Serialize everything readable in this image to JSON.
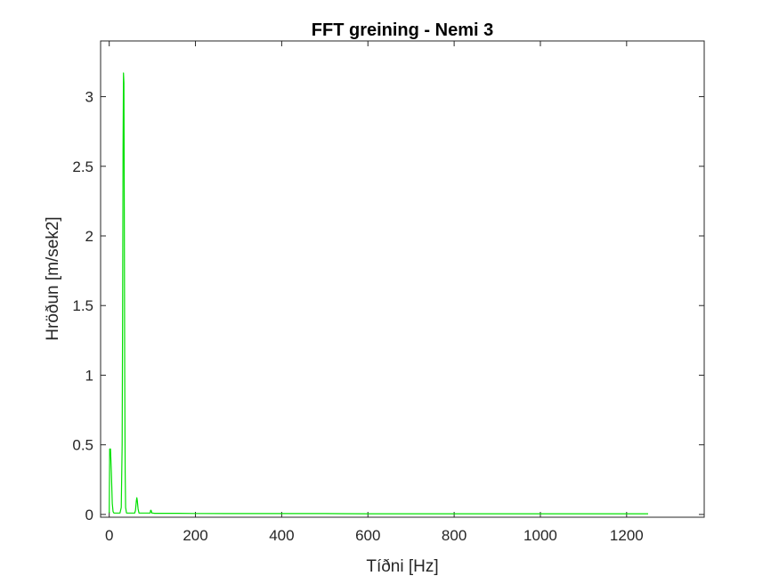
{
  "chart_data": {
    "type": "line",
    "title": "FFT greining - Nemi 3",
    "xlabel": "Tíðni [Hz]",
    "ylabel": "Hröðun [m/sek2]",
    "xlim": [
      -20,
      1380
    ],
    "ylim": [
      -0.02,
      3.4
    ],
    "xticks": [
      0,
      200,
      400,
      600,
      800,
      1000,
      1200
    ],
    "yticks": [
      0,
      0.5,
      1,
      1.5,
      2,
      2.5,
      3
    ],
    "ytick_labels": [
      "0",
      "0.5",
      "1",
      "1.5",
      "2",
      "2.5",
      "3"
    ],
    "grid": false,
    "series": [
      {
        "color": "#00e000",
        "x": [
          0,
          1,
          3,
          5,
          7,
          9,
          11,
          13,
          20,
          25,
          28,
          30,
          31,
          32,
          33,
          34,
          35,
          36,
          37,
          38,
          40,
          45,
          50,
          55,
          59,
          61,
          63,
          64,
          65,
          67,
          69,
          71,
          75,
          85,
          93,
          95,
          96,
          97,
          99,
          101,
          105,
          130,
          160,
          200,
          300,
          400,
          500,
          600,
          700,
          800,
          900,
          1000,
          1100,
          1200,
          1250
        ],
        "values": [
          0.01,
          0.47,
          0.47,
          0.3,
          0.08,
          0.02,
          0.01,
          0.01,
          0.01,
          0.01,
          0.05,
          0.5,
          1.4,
          2.6,
          3.17,
          3.1,
          2.2,
          1.0,
          0.3,
          0.05,
          0.01,
          0.01,
          0.01,
          0.01,
          0.01,
          0.03,
          0.1,
          0.12,
          0.1,
          0.04,
          0.01,
          0.01,
          0.01,
          0.01,
          0.01,
          0.01,
          0.03,
          0.03,
          0.01,
          0.01,
          0.008,
          0.008,
          0.008,
          0.007,
          0.006,
          0.006,
          0.006,
          0.005,
          0.005,
          0.005,
          0.005,
          0.005,
          0.005,
          0.005,
          0.005
        ]
      }
    ]
  }
}
